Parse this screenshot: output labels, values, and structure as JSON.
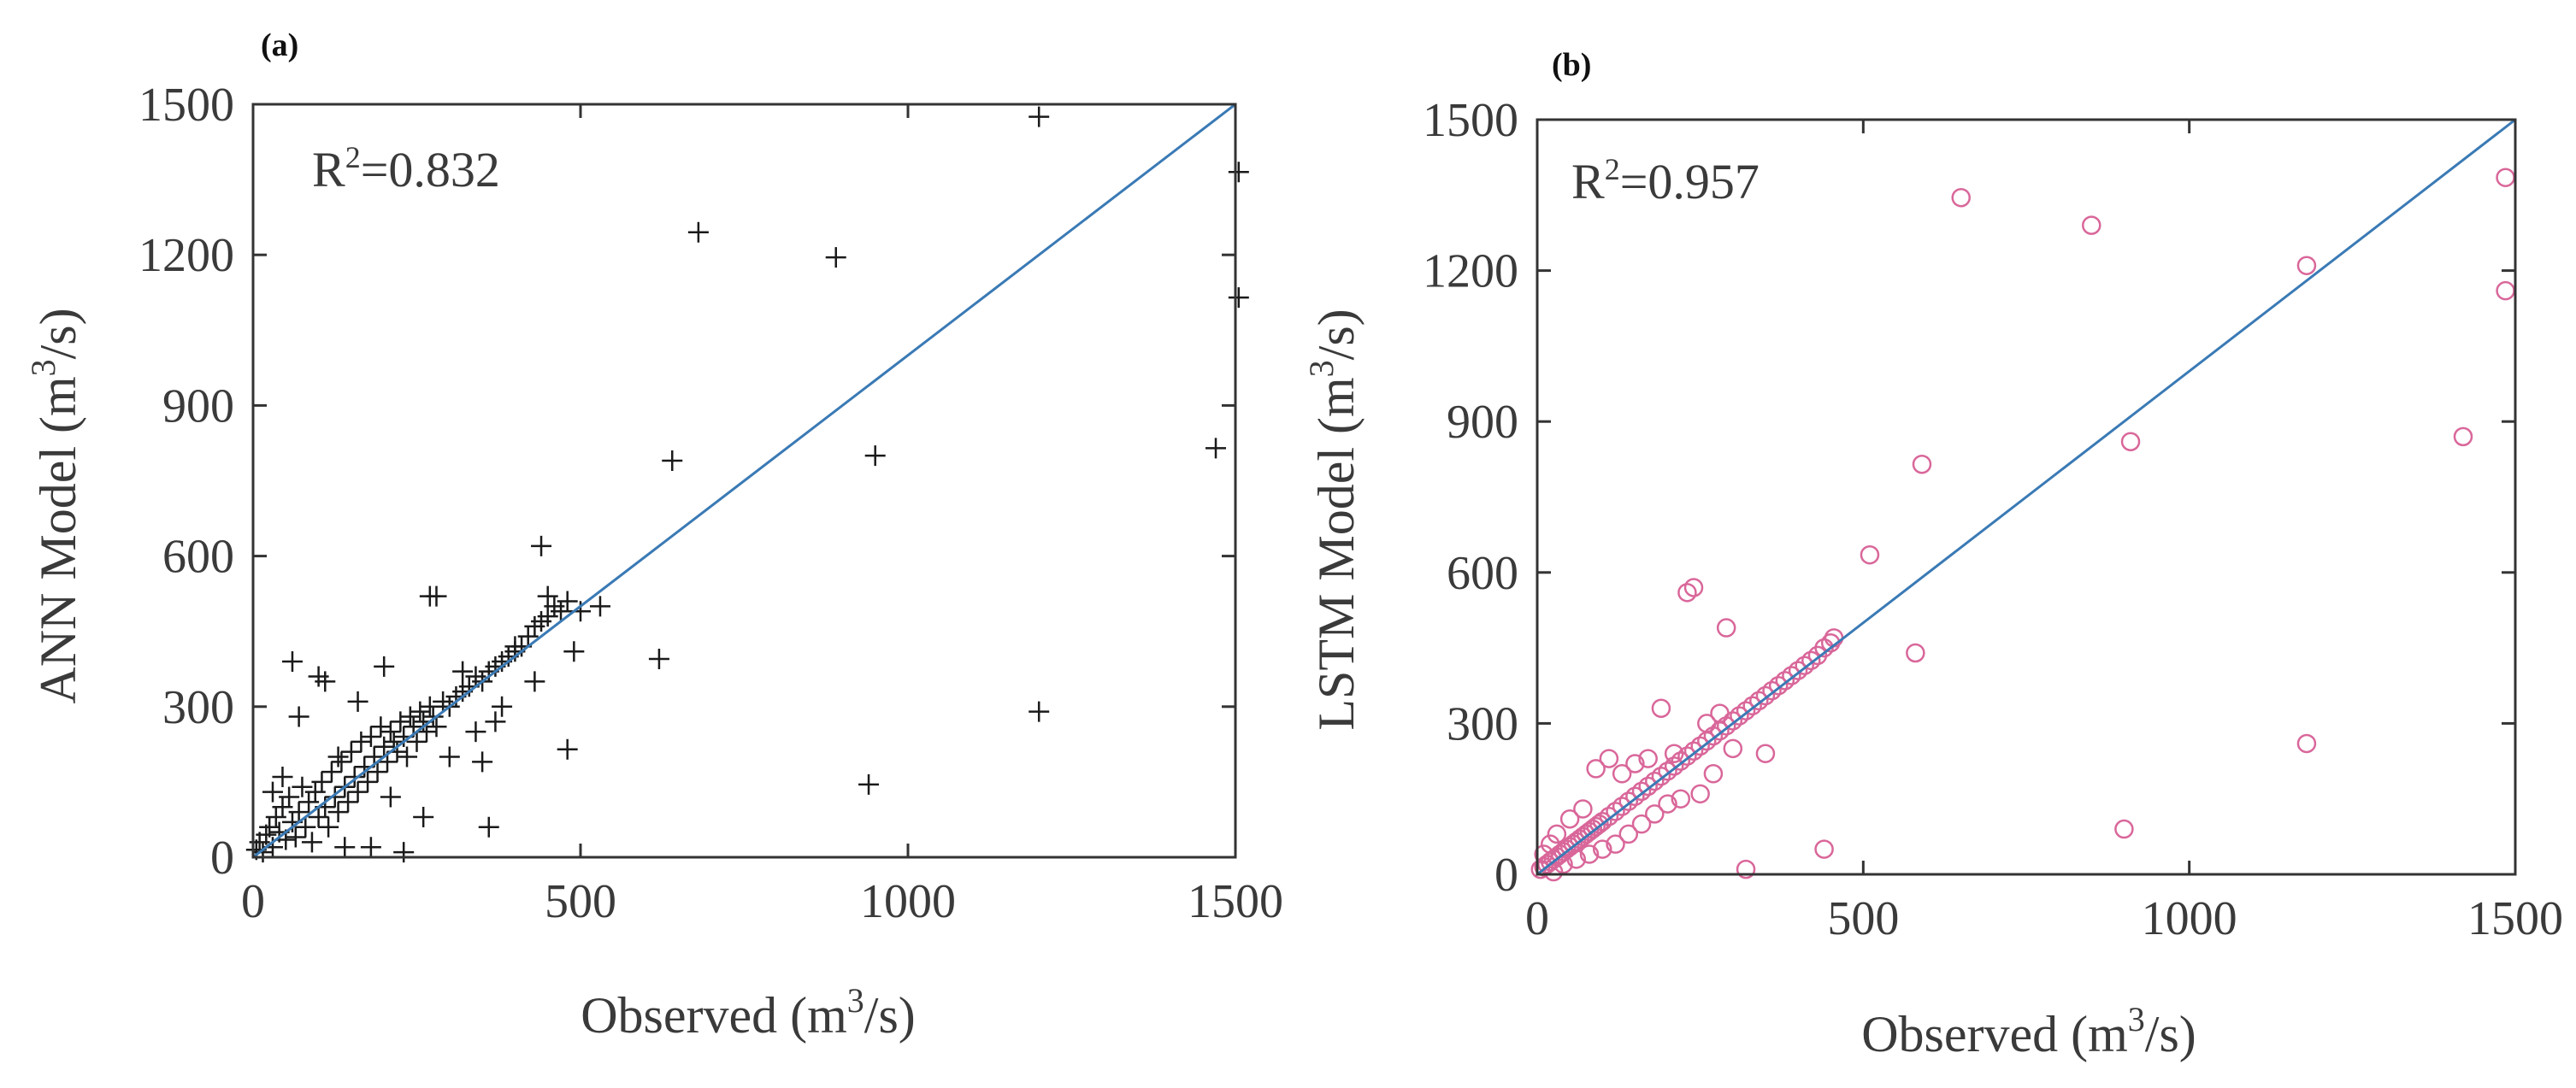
{
  "chart_data": [
    {
      "type": "scatter",
      "panel_label": "(a)",
      "ylabel_prefix": "ANN Model (m",
      "xlabel_prefix": "Observed (m",
      "unit_exponent": "3",
      "unit_suffix": "/s)",
      "annotation_prefix": "R",
      "annotation_exponent": "2",
      "annotation_value": "=0.832",
      "xlim": [
        0,
        1500
      ],
      "ylim": [
        0,
        1500
      ],
      "x_ticks": [
        "0",
        "500",
        "1000",
        "1500"
      ],
      "y_ticks": [
        "0",
        "300",
        "600",
        "900",
        "1200",
        "1500"
      ],
      "marker": "plus",
      "marker_color": "#1a1a1a",
      "line_color": "#3a7ab5",
      "reference_line": {
        "name": "1:1 line",
        "from": [
          0,
          0
        ],
        "to": [
          1500,
          1500
        ]
      },
      "series": [
        {
          "name": "ANN predictions",
          "points": [
            [
              5,
              15
            ],
            [
              10,
              30
            ],
            [
              15,
              10
            ],
            [
              20,
              45
            ],
            [
              25,
              60
            ],
            [
              30,
              20
            ],
            [
              35,
              80
            ],
            [
              40,
              50
            ],
            [
              45,
              100
            ],
            [
              50,
              35
            ],
            [
              55,
              120
            ],
            [
              60,
              70
            ],
            [
              65,
              40
            ],
            [
              70,
              90
            ],
            [
              75,
              140
            ],
            [
              80,
              60
            ],
            [
              85,
              110
            ],
            [
              90,
              30
            ],
            [
              95,
              130
            ],
            [
              100,
              80
            ],
            [
              105,
              150
            ],
            [
              110,
              100
            ],
            [
              115,
              60
            ],
            [
              120,
              170
            ],
            [
              125,
              120
            ],
            [
              130,
              90
            ],
            [
              135,
              190
            ],
            [
              140,
              140
            ],
            [
              145,
              110
            ],
            [
              150,
              210
            ],
            [
              155,
              160
            ],
            [
              160,
              130
            ],
            [
              165,
              230
            ],
            [
              170,
              180
            ],
            [
              175,
              150
            ],
            [
              180,
              240
            ],
            [
              185,
              200
            ],
            [
              190,
              170
            ],
            [
              195,
              260
            ],
            [
              200,
              220
            ],
            [
              205,
              190
            ],
            [
              210,
              250
            ],
            [
              215,
              230
            ],
            [
              220,
              210
            ],
            [
              225,
              270
            ],
            [
              230,
              240
            ],
            [
              235,
              200
            ],
            [
              240,
              280
            ],
            [
              245,
              260
            ],
            [
              250,
              230
            ],
            [
              255,
              290
            ],
            [
              260,
              270
            ],
            [
              265,
              250
            ],
            [
              270,
              300
            ],
            [
              275,
              280
            ],
            [
              280,
              260
            ],
            [
              290,
              310
            ],
            [
              300,
              300
            ],
            [
              310,
              320
            ],
            [
              320,
              330
            ],
            [
              330,
              340
            ],
            [
              340,
              360
            ],
            [
              350,
              350
            ],
            [
              360,
              370
            ],
            [
              370,
              380
            ],
            [
              380,
              390
            ],
            [
              390,
              400
            ],
            [
              400,
              410
            ],
            [
              410,
              420
            ],
            [
              420,
              440
            ],
            [
              430,
              460
            ],
            [
              440,
              470
            ],
            [
              450,
              480
            ],
            [
              460,
              500
            ],
            [
              470,
              490
            ],
            [
              480,
              510
            ],
            [
              30,
              130
            ],
            [
              45,
              160
            ],
            [
              60,
              390
            ],
            [
              70,
              280
            ],
            [
              100,
              360
            ],
            [
              110,
              350
            ],
            [
              130,
              200
            ],
            [
              140,
              20
            ],
            [
              160,
              310
            ],
            [
              180,
              20
            ],
            [
              200,
              380
            ],
            [
              210,
              120
            ],
            [
              230,
              10
            ],
            [
              260,
              80
            ],
            [
              270,
              520
            ],
            [
              280,
              520
            ],
            [
              300,
              200
            ],
            [
              320,
              370
            ],
            [
              340,
              250
            ],
            [
              350,
              190
            ],
            [
              360,
              60
            ],
            [
              370,
              270
            ],
            [
              380,
              300
            ],
            [
              400,
              420
            ],
            [
              430,
              350
            ],
            [
              440,
              620
            ],
            [
              450,
              520
            ],
            [
              480,
              215
            ],
            [
              490,
              410
            ],
            [
              500,
              490
            ],
            [
              530,
              500
            ],
            [
              620,
              395
            ],
            [
              640,
              790
            ],
            [
              680,
              1245
            ],
            [
              890,
              1195
            ],
            [
              950,
              800
            ],
            [
              940,
              145
            ],
            [
              1200,
              1475
            ],
            [
              1200,
              290
            ],
            [
              1470,
              815
            ],
            [
              1505,
              1365
            ],
            [
              1505,
              1115
            ]
          ]
        }
      ]
    },
    {
      "type": "scatter",
      "panel_label": "(b)",
      "ylabel_prefix": "LSTM Model (m",
      "xlabel_prefix": "Observed (m",
      "unit_exponent": "3",
      "unit_suffix": "/s)",
      "annotation_prefix": "R",
      "annotation_exponent": "2",
      "annotation_value": "=0.957",
      "xlim": [
        0,
        1500
      ],
      "ylim": [
        0,
        1500
      ],
      "x_ticks": [
        "0",
        "500",
        "1000",
        "1500"
      ],
      "y_ticks": [
        "0",
        "300",
        "600",
        "900",
        "1200",
        "1500"
      ],
      "marker": "circle",
      "marker_color": "#d9679a",
      "line_color": "#3a7ab5",
      "reference_line": {
        "name": "1:1 line",
        "from": [
          0,
          0
        ],
        "to": [
          1500,
          1500
        ]
      },
      "series": [
        {
          "name": "LSTM predictions",
          "points": [
            [
              5,
              10
            ],
            [
              10,
              15
            ],
            [
              15,
              20
            ],
            [
              20,
              25
            ],
            [
              25,
              30
            ],
            [
              30,
              35
            ],
            [
              35,
              40
            ],
            [
              40,
              45
            ],
            [
              45,
              50
            ],
            [
              50,
              55
            ],
            [
              55,
              60
            ],
            [
              60,
              65
            ],
            [
              65,
              70
            ],
            [
              70,
              75
            ],
            [
              75,
              80
            ],
            [
              80,
              85
            ],
            [
              85,
              90
            ],
            [
              90,
              95
            ],
            [
              95,
              100
            ],
            [
              100,
              105
            ],
            [
              110,
              115
            ],
            [
              120,
              125
            ],
            [
              130,
              135
            ],
            [
              140,
              145
            ],
            [
              150,
              155
            ],
            [
              160,
              165
            ],
            [
              170,
              175
            ],
            [
              180,
              185
            ],
            [
              190,
              195
            ],
            [
              200,
              205
            ],
            [
              210,
              215
            ],
            [
              220,
              225
            ],
            [
              230,
              235
            ],
            [
              240,
              245
            ],
            [
              250,
              255
            ],
            [
              260,
              265
            ],
            [
              270,
              275
            ],
            [
              280,
              285
            ],
            [
              290,
              295
            ],
            [
              300,
              305
            ],
            [
              310,
              315
            ],
            [
              320,
              325
            ],
            [
              330,
              335
            ],
            [
              340,
              345
            ],
            [
              350,
              355
            ],
            [
              360,
              365
            ],
            [
              370,
              375
            ],
            [
              380,
              385
            ],
            [
              390,
              395
            ],
            [
              400,
              405
            ],
            [
              410,
              415
            ],
            [
              420,
              425
            ],
            [
              430,
              435
            ],
            [
              440,
              450
            ],
            [
              450,
              460
            ],
            [
              455,
              470
            ],
            [
              10,
              40
            ],
            [
              20,
              60
            ],
            [
              25,
              5
            ],
            [
              30,
              80
            ],
            [
              40,
              20
            ],
            [
              50,
              110
            ],
            [
              60,
              30
            ],
            [
              70,
              130
            ],
            [
              80,
              40
            ],
            [
              90,
              210
            ],
            [
              100,
              50
            ],
            [
              110,
              230
            ],
            [
              120,
              60
            ],
            [
              130,
              200
            ],
            [
              140,
              80
            ],
            [
              150,
              220
            ],
            [
              160,
              100
            ],
            [
              170,
              230
            ],
            [
              180,
              120
            ],
            [
              190,
              330
            ],
            [
              200,
              140
            ],
            [
              210,
              240
            ],
            [
              220,
              150
            ],
            [
              230,
              560
            ],
            [
              240,
              570
            ],
            [
              250,
              160
            ],
            [
              260,
              300
            ],
            [
              270,
              200
            ],
            [
              280,
              320
            ],
            [
              290,
              490
            ],
            [
              300,
              250
            ],
            [
              320,
              10
            ],
            [
              350,
              240
            ],
            [
              440,
              50
            ],
            [
              510,
              635
            ],
            [
              580,
              440
            ],
            [
              590,
              815
            ],
            [
              650,
              1345
            ],
            [
              850,
              1290
            ],
            [
              900,
              90
            ],
            [
              910,
              860
            ],
            [
              1180,
              1210
            ],
            [
              1180,
              260
            ],
            [
              1420,
              870
            ],
            [
              1485,
              1385
            ],
            [
              1485,
              1160
            ]
          ]
        }
      ]
    }
  ]
}
